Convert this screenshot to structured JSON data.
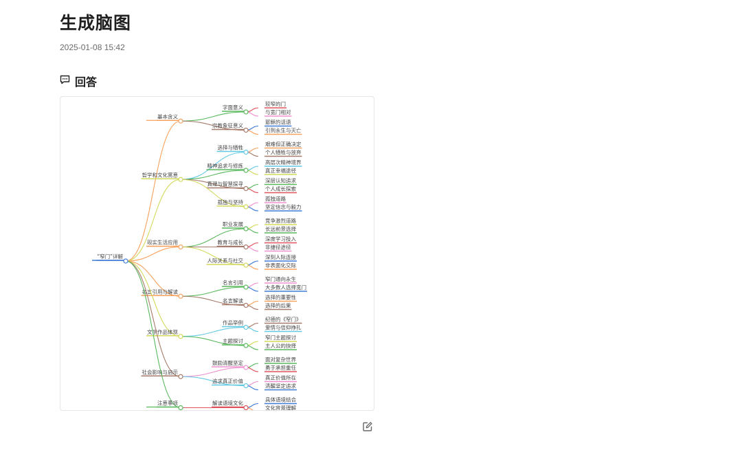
{
  "page": {
    "title": "生成脑图",
    "timestamp": "2025-01-08 15:42"
  },
  "answer": {
    "icon": "comment-icon",
    "title": "回答"
  },
  "mindmap": {
    "root": "“窄门”详解",
    "branches": [
      {
        "label": "基本含义",
        "color": "#f7a15c",
        "children": [
          {
            "label": "字面意义",
            "color": "#59b85c",
            "leaves": [
              "较窄的门",
              "与宽门相对"
            ]
          },
          {
            "label": "宗教象征意义",
            "color": "#a67a6a",
            "leaves": [
              "耶稣的话语",
              "引到永生与灭亡"
            ]
          }
        ]
      },
      {
        "label": "哲学和文化寓意",
        "color": "#d2d95a",
        "children": [
          {
            "label": "选择与牺牲",
            "color": "#62c9e3",
            "leaves": [
              "艰难但正确决定",
              "个人牺牲与放弃"
            ]
          },
          {
            "label": "精神追求与修炼",
            "color": "#59b85c",
            "leaves": [
              "高层次精神境界",
              "真正幸福途径"
            ]
          },
          {
            "label": "真理与智慧探寻",
            "color": "#a67a6a",
            "leaves": [
              "深层认知追求",
              "个人成长探索"
            ]
          },
          {
            "label": "孤独与坚持",
            "color": "#d2d95a",
            "leaves": [
              "孤独道路",
              "坚定信念与毅力"
            ]
          }
        ]
      },
      {
        "label": "现实生活应用",
        "color": "#f7a15c",
        "children": [
          {
            "label": "职业发展",
            "color": "#59b85c",
            "leaves": [
              "竞争激烈道路",
              "长远前景选择"
            ]
          },
          {
            "label": "教育与成长",
            "color": "#a67a6a",
            "leaves": [
              "深度学习投入",
              "非捷径途径"
            ]
          },
          {
            "label": "人际关系与社交",
            "color": "#d2d95a",
            "leaves": [
              "深刻人际连接",
              "非表面化交际"
            ]
          }
        ]
      },
      {
        "label": "名言引用与解读",
        "color": "#f7a15c",
        "children": [
          {
            "label": "名言引用",
            "color": "#59b85c",
            "leaves": [
              "窄门通向永生",
              "大多数人选择宽门"
            ]
          },
          {
            "label": "名言解读",
            "color": "#a67a6a",
            "leaves": [
              "选择的重要性",
              "选择的后果"
            ]
          }
        ]
      },
      {
        "label": "文学作品体现",
        "color": "#d2d95a",
        "children": [
          {
            "label": "作品举例",
            "color": "#62c9e3",
            "leaves": [
              "纪德的《窄门》",
              "爱情与信仰挣扎"
            ]
          },
          {
            "label": "主题探讨",
            "color": "#59b85c",
            "leaves": [
              "窄门主题探讨",
              "主人公的抉择"
            ]
          }
        ]
      },
      {
        "label": "社会影响与启示",
        "color": "#a67a6a",
        "children": [
          {
            "label": "鼓励清醒坚定",
            "color": "#f08fcf",
            "leaves": [
              "面对复杂世界",
              "勇于承担重任"
            ]
          },
          {
            "label": "追求真正价值",
            "color": "#62c9e3",
            "leaves": [
              "真正价值所在",
              "清醒坚定追求"
            ]
          }
        ]
      },
      {
        "label": "注意事项",
        "color": "#59b85c",
        "children": [
          {
            "label": "解读语境文化",
            "color": "#e0525b",
            "leaves": [
              "具体语境结合",
              "文化背景理解"
            ]
          }
        ]
      }
    ]
  }
}
